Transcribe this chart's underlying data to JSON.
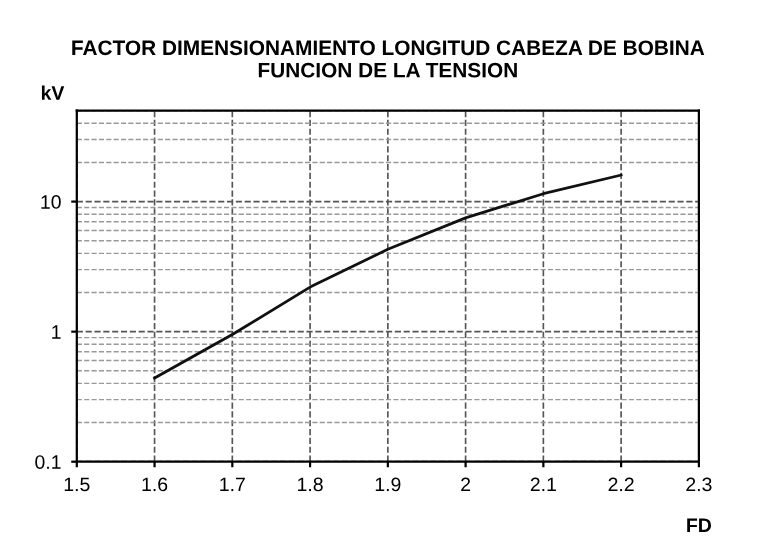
{
  "chart_data": {
    "type": "line",
    "title": "FACTOR DIMENSIONAMIENTO LONGITUD CABEZA DE BOBINA\nFUNCION DE LA TENSION",
    "xlabel": "FD",
    "ylabel": "kV",
    "series": [
      {
        "color": "#111111",
        "x": [
          1.6,
          1.7,
          1.8,
          1.9,
          2.0,
          2.1,
          2.2
        ],
        "values": [
          0.44,
          0.95,
          2.2,
          4.3,
          7.5,
          11.5,
          16
        ]
      }
    ],
    "xlim": [
      1.5,
      2.3
    ],
    "xticks": [
      1.5,
      1.6,
      1.7,
      1.8,
      1.9,
      2,
      2.1,
      2.2,
      2.3
    ],
    "ylim": [
      0.1,
      50
    ],
    "yticks": [
      0.1,
      1,
      10
    ],
    "log": "y",
    "grid": true,
    "legend": false,
    "marker": "none",
    "line_style": "solid"
  }
}
